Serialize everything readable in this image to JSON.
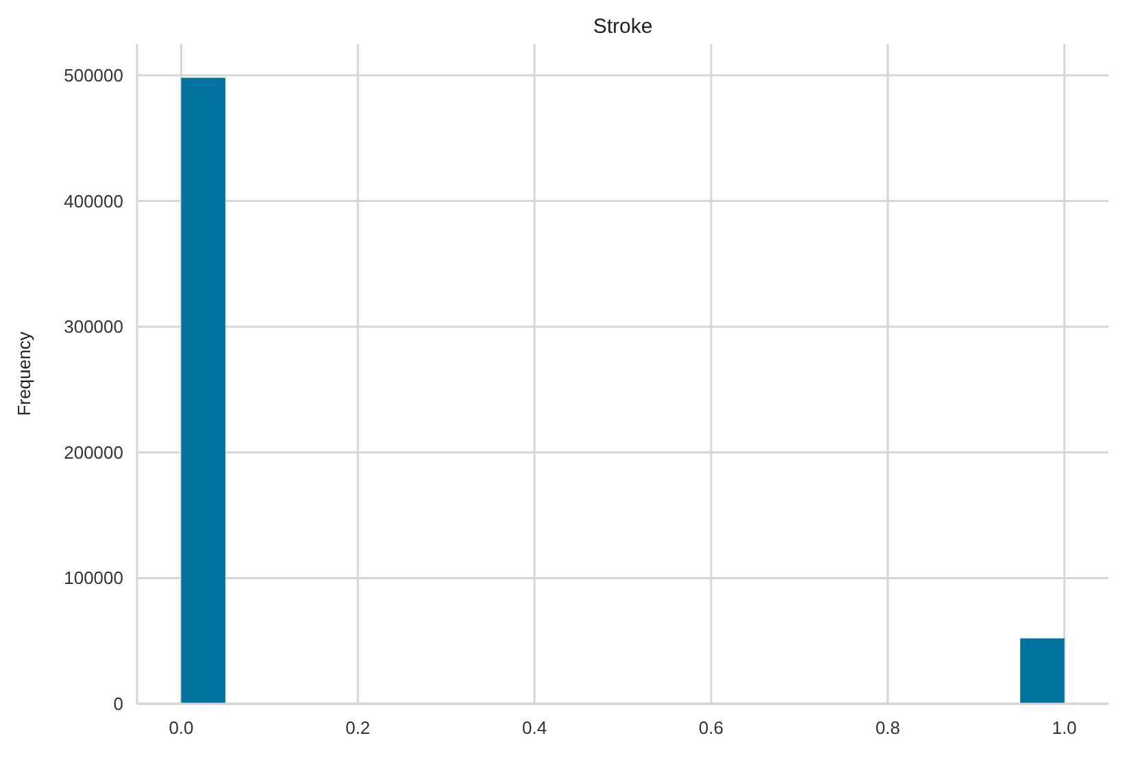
{
  "chart_data": {
    "type": "histogram",
    "title": "Stroke",
    "ylabel": "Frequency",
    "bins": [
      0,
      0.05,
      0.1,
      0.15,
      0.2,
      0.25,
      0.3,
      0.35,
      0.4,
      0.45,
      0.5,
      0.55,
      0.6,
      0.65,
      0.7,
      0.75,
      0.8,
      0.85,
      0.9,
      0.95,
      1.0
    ],
    "values": [
      498000,
      0,
      0,
      0,
      0,
      0,
      0,
      0,
      0,
      0,
      0,
      0,
      0,
      0,
      0,
      0,
      0,
      0,
      0,
      52000
    ],
    "color": "#0072a0",
    "xlim": [
      -0.05,
      1.05
    ],
    "xticks": [
      {
        "value": 0,
        "label": "0.0"
      },
      {
        "value": 0.2,
        "label": "0.2"
      },
      {
        "value": 0.4,
        "label": "0.4"
      },
      {
        "value": 0.6,
        "label": "0.6"
      },
      {
        "value": 0.8,
        "label": "0.8"
      },
      {
        "value": 1,
        "label": "1.0"
      }
    ],
    "ylim": [
      0,
      525000
    ],
    "yticks": [
      0,
      100000,
      200000,
      300000,
      400000,
      500000
    ],
    "grid": true
  }
}
